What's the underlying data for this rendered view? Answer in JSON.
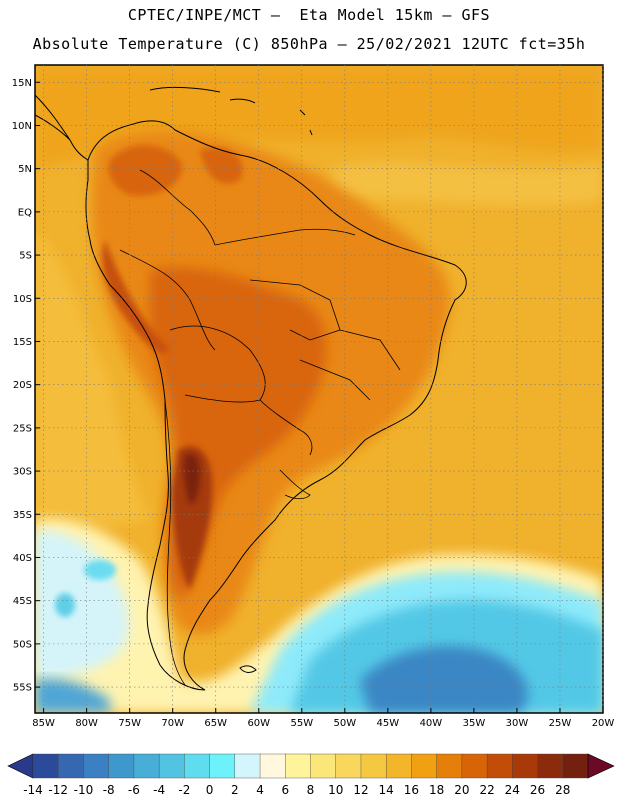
{
  "header": {
    "line1": "CPTEC/INPE/MCT –  Eta Model 15km – GFS",
    "line2": "Absolute Temperature (C) 850hPa – 25/02/2021 12UTC fct=35h"
  },
  "map": {
    "lat_labels": [
      "15N",
      "10N",
      "5N",
      "EQ",
      "5S",
      "10S",
      "15S",
      "20S",
      "25S",
      "30S",
      "35S",
      "40S",
      "45S",
      "50S",
      "55S"
    ],
    "lat_values": [
      15,
      10,
      5,
      0,
      -5,
      -10,
      -15,
      -20,
      -25,
      -30,
      -35,
      -40,
      -45,
      -50,
      -55
    ],
    "lon_labels": [
      "85W",
      "80W",
      "75W",
      "70W",
      "65W",
      "60W",
      "55W",
      "50W",
      "45W",
      "40W",
      "35W",
      "30W",
      "25W",
      "20W"
    ],
    "lon_values": [
      -85,
      -80,
      -75,
      -70,
      -65,
      -60,
      -55,
      -50,
      -45,
      -40,
      -35,
      -30,
      -25,
      -20
    ],
    "lon_range": [
      -86,
      -20
    ],
    "lat_range": [
      -58,
      17
    ]
  },
  "colorbar": {
    "tick_labels": [
      "-14",
      "-12",
      "-10",
      "-8",
      "-6",
      "-4",
      "-2",
      "0",
      "2",
      "4",
      "6",
      "8",
      "10",
      "12",
      "14",
      "16",
      "18",
      "20",
      "22",
      "24",
      "26",
      "28"
    ],
    "colors": [
      "#2c4a9a",
      "#3568b0",
      "#3a80c2",
      "#3f98cc",
      "#47aed8",
      "#52c4e2",
      "#5fdcee",
      "#6ef2fa",
      "#d2f6fc",
      "#fff8de",
      "#fff49a",
      "#fbe67a",
      "#f9d65c",
      "#f5c842",
      "#f3b529",
      "#f0a010",
      "#e67f0a",
      "#d86408",
      "#c24d08",
      "#a83a0a",
      "#8c2a0c",
      "#74200e"
    ],
    "low_arrow_color": "#2a3a8a",
    "high_arrow_color": "#6a0a24"
  }
}
